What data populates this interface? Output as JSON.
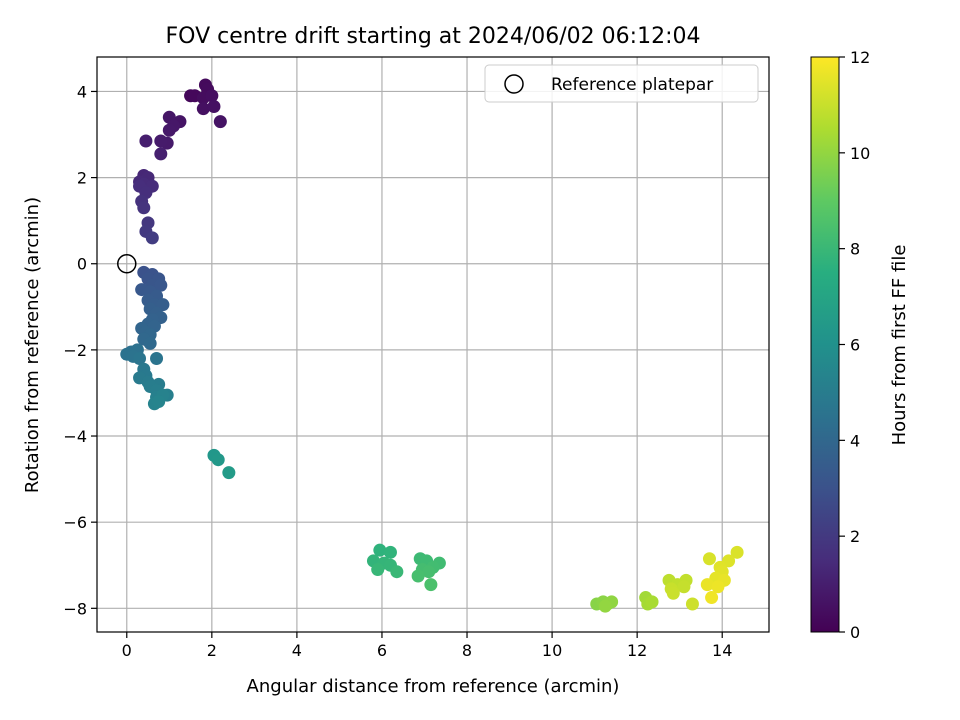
{
  "chart_data": {
    "type": "scatter",
    "title": "FOV centre drift starting at 2024/06/02 06:12:04",
    "xlabel": "Angular distance from reference (arcmin)",
    "ylabel": "Rotation from reference (arcmin)",
    "xlim": [
      -0.7,
      15.1
    ],
    "ylim": [
      -8.55,
      4.8
    ],
    "xticks": [
      0,
      2,
      4,
      6,
      8,
      10,
      12,
      14
    ],
    "yticks": [
      -8,
      -6,
      -4,
      -2,
      0,
      2,
      4
    ],
    "grid": true,
    "legend": {
      "placement": "top-right",
      "entries": [
        "Reference platepar"
      ]
    },
    "colorbar": {
      "label": "Hours from first FF file",
      "range": [
        0,
        12
      ],
      "ticks": [
        0,
        2,
        4,
        6,
        8,
        10,
        12
      ],
      "colormap": "viridis"
    },
    "reference_point": {
      "x": 0,
      "y": 0
    },
    "points": [
      {
        "x": 1.5,
        "y": 3.9,
        "c": 0.2
      },
      {
        "x": 1.6,
        "y": 3.9,
        "c": 0.25
      },
      {
        "x": 1.85,
        "y": 4.15,
        "c": 0.3
      },
      {
        "x": 1.9,
        "y": 4.05,
        "c": 0.35
      },
      {
        "x": 1.8,
        "y": 3.85,
        "c": 0.4
      },
      {
        "x": 2.0,
        "y": 3.9,
        "c": 0.45
      },
      {
        "x": 1.8,
        "y": 3.6,
        "c": 0.5
      },
      {
        "x": 2.05,
        "y": 3.65,
        "c": 0.55
      },
      {
        "x": 2.2,
        "y": 3.3,
        "c": 0.6
      },
      {
        "x": 1.25,
        "y": 3.3,
        "c": 0.65
      },
      {
        "x": 1.0,
        "y": 3.4,
        "c": 0.7
      },
      {
        "x": 1.1,
        "y": 3.2,
        "c": 0.75
      },
      {
        "x": 1.0,
        "y": 3.1,
        "c": 0.8
      },
      {
        "x": 0.95,
        "y": 2.8,
        "c": 0.85
      },
      {
        "x": 0.8,
        "y": 2.85,
        "c": 0.9
      },
      {
        "x": 0.45,
        "y": 2.85,
        "c": 1.0
      },
      {
        "x": 0.8,
        "y": 2.55,
        "c": 1.05
      },
      {
        "x": 0.4,
        "y": 2.05,
        "c": 1.3
      },
      {
        "x": 0.5,
        "y": 2.0,
        "c": 1.35
      },
      {
        "x": 0.3,
        "y": 1.9,
        "c": 1.4
      },
      {
        "x": 0.4,
        "y": 1.85,
        "c": 1.45
      },
      {
        "x": 0.6,
        "y": 1.8,
        "c": 1.5
      },
      {
        "x": 0.3,
        "y": 1.8,
        "c": 1.55
      },
      {
        "x": 0.45,
        "y": 1.65,
        "c": 1.6
      },
      {
        "x": 0.35,
        "y": 1.45,
        "c": 1.7
      },
      {
        "x": 0.4,
        "y": 1.3,
        "c": 1.8
      },
      {
        "x": 0.5,
        "y": 0.95,
        "c": 1.9
      },
      {
        "x": 0.45,
        "y": 0.75,
        "c": 2.0
      },
      {
        "x": 0.6,
        "y": 0.6,
        "c": 2.1
      },
      {
        "x": 0.4,
        "y": -0.2,
        "c": 3.0
      },
      {
        "x": 0.6,
        "y": -0.25,
        "c": 3.05
      },
      {
        "x": 0.5,
        "y": -0.35,
        "c": 3.1
      },
      {
        "x": 0.75,
        "y": -0.35,
        "c": 3.15
      },
      {
        "x": 0.6,
        "y": -0.5,
        "c": 3.2
      },
      {
        "x": 0.8,
        "y": -0.5,
        "c": 3.25
      },
      {
        "x": 0.35,
        "y": -0.6,
        "c": 3.3
      },
      {
        "x": 0.55,
        "y": -0.65,
        "c": 3.35
      },
      {
        "x": 0.7,
        "y": -0.75,
        "c": 3.4
      },
      {
        "x": 0.5,
        "y": -0.85,
        "c": 3.45
      },
      {
        "x": 0.65,
        "y": -0.95,
        "c": 3.5
      },
      {
        "x": 0.85,
        "y": -0.95,
        "c": 3.55
      },
      {
        "x": 0.55,
        "y": -1.05,
        "c": 3.6
      },
      {
        "x": 0.7,
        "y": -1.15,
        "c": 3.65
      },
      {
        "x": 0.8,
        "y": -1.25,
        "c": 3.7
      },
      {
        "x": 0.6,
        "y": -1.3,
        "c": 3.75
      },
      {
        "x": 0.5,
        "y": -1.4,
        "c": 3.8
      },
      {
        "x": 0.65,
        "y": -1.45,
        "c": 3.85
      },
      {
        "x": 0.35,
        "y": -1.5,
        "c": 3.9
      },
      {
        "x": 0.45,
        "y": -1.6,
        "c": 3.95
      },
      {
        "x": 0.55,
        "y": -1.65,
        "c": 4.0
      },
      {
        "x": 0.4,
        "y": -1.75,
        "c": 4.05
      },
      {
        "x": 0.55,
        "y": -1.85,
        "c": 4.1
      },
      {
        "x": 0.1,
        "y": -2.05,
        "c": 4.4
      },
      {
        "x": 0.25,
        "y": -2.0,
        "c": 4.45
      },
      {
        "x": 0.0,
        "y": -2.1,
        "c": 4.5
      },
      {
        "x": 0.15,
        "y": -2.15,
        "c": 4.55
      },
      {
        "x": 0.7,
        "y": -2.2,
        "c": 4.6
      },
      {
        "x": 0.3,
        "y": -2.2,
        "c": 4.65
      },
      {
        "x": 0.4,
        "y": -2.45,
        "c": 4.8
      },
      {
        "x": 0.45,
        "y": -2.6,
        "c": 4.85
      },
      {
        "x": 0.3,
        "y": -2.65,
        "c": 4.9
      },
      {
        "x": 0.5,
        "y": -2.75,
        "c": 4.95
      },
      {
        "x": 0.75,
        "y": -2.8,
        "c": 5.0
      },
      {
        "x": 0.55,
        "y": -2.85,
        "c": 5.05
      },
      {
        "x": 0.7,
        "y": -2.95,
        "c": 5.1
      },
      {
        "x": 0.95,
        "y": -3.05,
        "c": 5.15
      },
      {
        "x": 0.7,
        "y": -3.1,
        "c": 5.2
      },
      {
        "x": 0.85,
        "y": -3.05,
        "c": 5.25
      },
      {
        "x": 0.65,
        "y": -3.25,
        "c": 5.3
      },
      {
        "x": 0.75,
        "y": -3.2,
        "c": 5.35
      },
      {
        "x": 2.05,
        "y": -4.45,
        "c": 6.3
      },
      {
        "x": 2.15,
        "y": -4.55,
        "c": 6.35
      },
      {
        "x": 2.4,
        "y": -4.85,
        "c": 6.5
      },
      {
        "x": 5.95,
        "y": -6.65,
        "c": 7.7
      },
      {
        "x": 6.2,
        "y": -6.7,
        "c": 7.75
      },
      {
        "x": 5.8,
        "y": -6.9,
        "c": 7.8
      },
      {
        "x": 6.05,
        "y": -6.95,
        "c": 7.85
      },
      {
        "x": 6.2,
        "y": -7.0,
        "c": 7.9
      },
      {
        "x": 5.9,
        "y": -7.1,
        "c": 7.95
      },
      {
        "x": 6.35,
        "y": -7.15,
        "c": 8.0
      },
      {
        "x": 6.9,
        "y": -6.85,
        "c": 8.1
      },
      {
        "x": 7.05,
        "y": -6.9,
        "c": 8.15
      },
      {
        "x": 7.35,
        "y": -6.95,
        "c": 8.2
      },
      {
        "x": 7.2,
        "y": -7.05,
        "c": 8.25
      },
      {
        "x": 6.95,
        "y": -7.1,
        "c": 8.3
      },
      {
        "x": 7.1,
        "y": -7.15,
        "c": 8.35
      },
      {
        "x": 6.85,
        "y": -7.25,
        "c": 8.4
      },
      {
        "x": 7.15,
        "y": -7.45,
        "c": 8.5
      },
      {
        "x": 11.05,
        "y": -7.9,
        "c": 9.8
      },
      {
        "x": 11.2,
        "y": -7.85,
        "c": 9.85
      },
      {
        "x": 11.3,
        "y": -7.9,
        "c": 9.9
      },
      {
        "x": 11.4,
        "y": -7.85,
        "c": 9.95
      },
      {
        "x": 11.25,
        "y": -7.95,
        "c": 10.0
      },
      {
        "x": 12.2,
        "y": -7.75,
        "c": 10.3
      },
      {
        "x": 12.25,
        "y": -7.9,
        "c": 10.35
      },
      {
        "x": 12.35,
        "y": -7.85,
        "c": 10.4
      },
      {
        "x": 12.75,
        "y": -7.35,
        "c": 10.8
      },
      {
        "x": 12.95,
        "y": -7.45,
        "c": 10.85
      },
      {
        "x": 13.15,
        "y": -7.35,
        "c": 10.9
      },
      {
        "x": 13.1,
        "y": -7.5,
        "c": 10.95
      },
      {
        "x": 12.8,
        "y": -7.55,
        "c": 11.0
      },
      {
        "x": 12.85,
        "y": -7.65,
        "c": 11.05
      },
      {
        "x": 13.3,
        "y": -7.9,
        "c": 11.1
      },
      {
        "x": 13.7,
        "y": -6.85,
        "c": 11.3
      },
      {
        "x": 14.35,
        "y": -6.7,
        "c": 11.35
      },
      {
        "x": 14.15,
        "y": -6.9,
        "c": 11.4
      },
      {
        "x": 13.95,
        "y": -7.05,
        "c": 11.45
      },
      {
        "x": 14.0,
        "y": -7.15,
        "c": 11.5
      },
      {
        "x": 13.85,
        "y": -7.3,
        "c": 11.55
      },
      {
        "x": 14.05,
        "y": -7.35,
        "c": 11.6
      },
      {
        "x": 13.65,
        "y": -7.45,
        "c": 11.65
      },
      {
        "x": 13.9,
        "y": -7.5,
        "c": 11.7
      },
      {
        "x": 13.75,
        "y": -7.75,
        "c": 11.75
      }
    ]
  }
}
